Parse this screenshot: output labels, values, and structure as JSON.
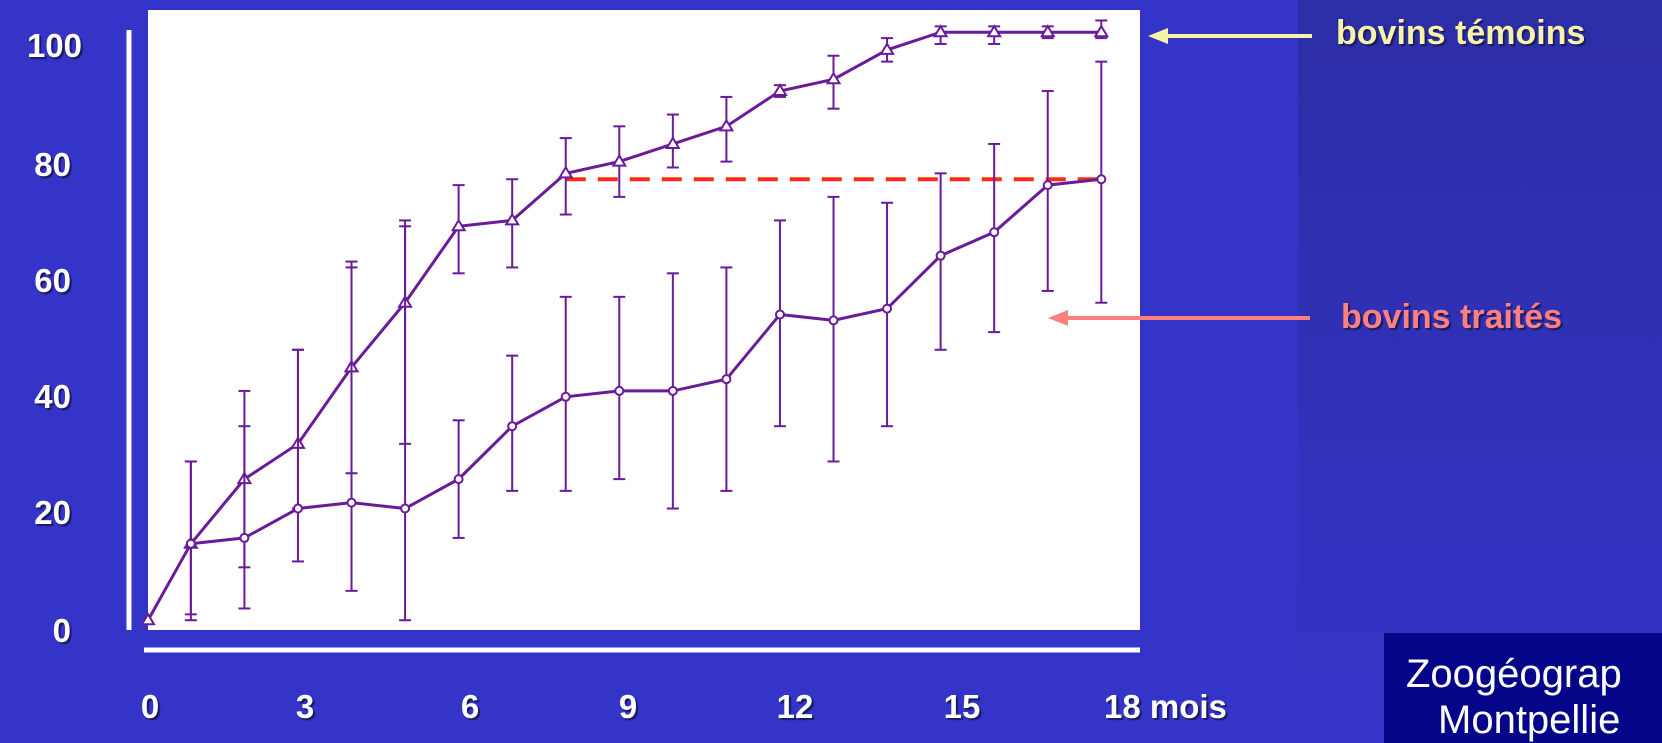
{
  "chart_data": {
    "type": "line",
    "x_tick_labels": [
      "0",
      "3",
      "6",
      "9",
      "12",
      "15",
      "18 mois"
    ],
    "x_ticks": [
      0,
      3,
      6,
      9,
      12,
      15,
      18
    ],
    "y_tick_labels": [
      "0",
      "20",
      "40",
      "60",
      "80",
      "100"
    ],
    "y_ticks": [
      0,
      20,
      40,
      60,
      80,
      100
    ],
    "xlim": [
      0,
      18
    ],
    "ylim": [
      0,
      100
    ],
    "grid": false,
    "series": [
      {
        "name": "bovins témoins",
        "x": [
          0,
          0.8,
          1.8,
          2.8,
          3.8,
          4.8,
          5.8,
          6.8,
          7.8,
          8.8,
          9.8,
          10.8,
          11.8,
          12.8,
          13.8,
          14.8,
          15.8,
          16.8,
          17.8
        ],
        "y": [
          2,
          15,
          26,
          32,
          45,
          56,
          69,
          70,
          78,
          80,
          83,
          86,
          92,
          94,
          99,
          102,
          102,
          102,
          102
        ],
        "err_low": [
          null,
          3,
          11,
          21,
          27,
          32,
          61,
          62,
          71,
          74,
          79,
          80,
          91,
          89,
          97,
          100,
          100,
          101,
          101
        ],
        "err_high": [
          null,
          29,
          41,
          48,
          63,
          70,
          76,
          77,
          84,
          86,
          88,
          91,
          93,
          98,
          101,
          103,
          103,
          103,
          104
        ],
        "color": "#6a1b9a",
        "marker": "triangle"
      },
      {
        "name": "bovins traités",
        "x": [
          0.8,
          1.8,
          2.8,
          3.8,
          4.8,
          5.8,
          6.8,
          7.8,
          8.8,
          9.8,
          10.8,
          11.8,
          12.8,
          13.8,
          14.8,
          15.8,
          16.8,
          17.8
        ],
        "y": [
          15,
          16,
          21,
          22,
          21,
          26,
          35,
          40,
          41,
          41,
          43,
          54,
          53,
          55,
          64,
          68,
          76,
          77
        ],
        "err_low": [
          2,
          4,
          12,
          7,
          2,
          16,
          24,
          24,
          26,
          21,
          24,
          35,
          29,
          35,
          48,
          51,
          58,
          56
        ],
        "err_high": [
          29,
          35,
          48,
          62,
          69,
          36,
          47,
          57,
          57,
          61,
          62,
          70,
          74,
          73,
          78,
          83,
          92,
          97
        ],
        "color": "#6a1b9a",
        "marker": "circle"
      }
    ],
    "reference_line": {
      "y": 77,
      "x_from": 7.8,
      "x_to": 17.8,
      "style": "dashed",
      "color": "#ff2a12"
    },
    "annotations": [
      {
        "text": "bovins témoins",
        "color": "#f7f2a8",
        "points_to_series": "bovins témoins"
      },
      {
        "text": "bovins traités",
        "color": "#ff8080",
        "points_to_series": "bovins traités"
      }
    ]
  },
  "footer": {
    "line1": "Zoogéograp",
    "line2": "Montpellie"
  },
  "colors": {
    "background": "#3434c8",
    "axis": "#ffffff",
    "series": "#6a1b9a",
    "reference": "#ff2a12",
    "temoins_label": "#f7f2a8",
    "traites_label": "#ff8080",
    "footer_bg": "#05058a"
  }
}
